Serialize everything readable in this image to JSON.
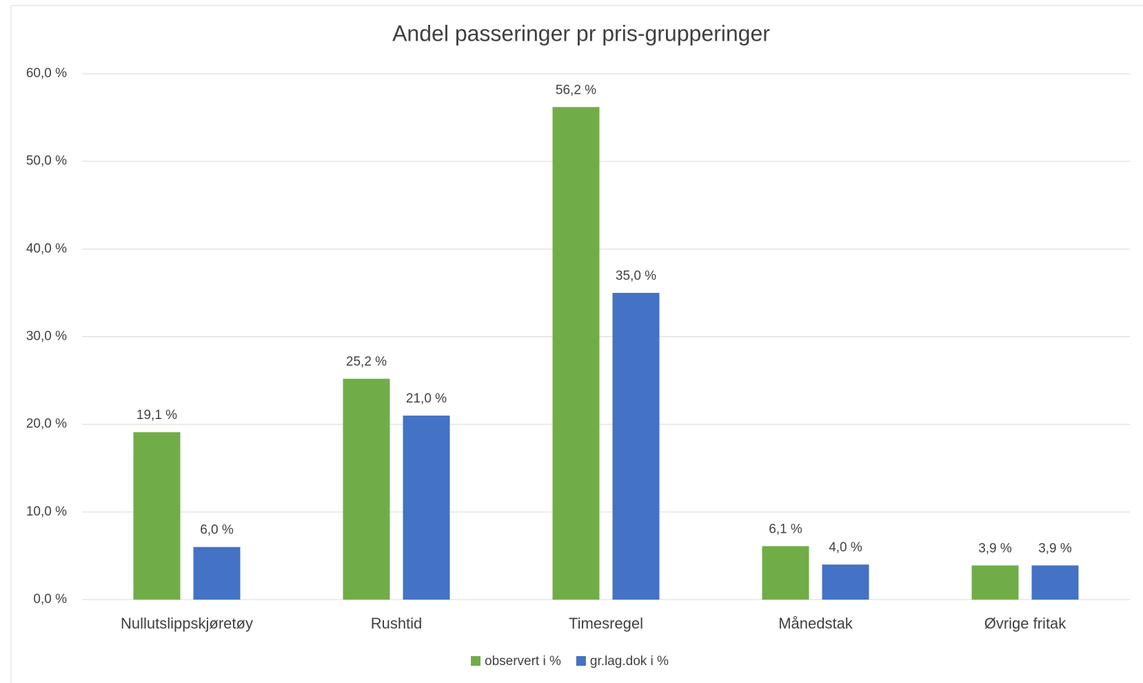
{
  "chart_data": {
    "type": "bar",
    "title": "Andel passeringer pr pris-grupperinger",
    "categories": [
      "Nullutslippskjøretøy",
      "Rushtid",
      "Timesregel",
      "Månedstak",
      "Øvrige fritak"
    ],
    "series": [
      {
        "name": "observert i %",
        "color": "#70ad47",
        "values": [
          19.1,
          25.2,
          56.2,
          6.1,
          3.9
        ],
        "value_labels": [
          "19,1 %",
          "25,2 %",
          "56,2 %",
          "6,1 %",
          "3,9 %"
        ]
      },
      {
        "name": "gr.lag.dok i %",
        "color": "#4472c4",
        "values": [
          6.0,
          21.0,
          35.0,
          4.0,
          3.9
        ],
        "value_labels": [
          "6,0 %",
          "21,0 %",
          "35,0 %",
          "4,0 %",
          "3,9 %"
        ]
      }
    ],
    "ylim": [
      0,
      60
    ],
    "yticks": [
      {
        "value": 0,
        "label": "0,0 %"
      },
      {
        "value": 10,
        "label": "10,0 %"
      },
      {
        "value": 20,
        "label": "20,0 %"
      },
      {
        "value": 30,
        "label": "30,0 %"
      },
      {
        "value": 40,
        "label": "40,0 %"
      },
      {
        "value": 50,
        "label": "50,0 %"
      },
      {
        "value": 60,
        "label": "60,0 %"
      }
    ],
    "grid": true,
    "legend": "bottom"
  }
}
